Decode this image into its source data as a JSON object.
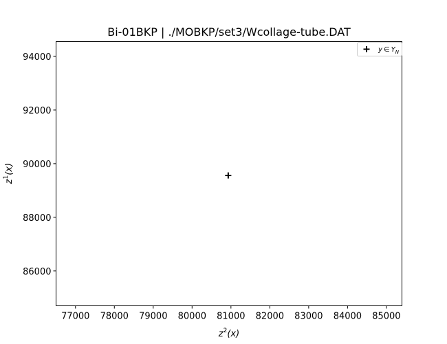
{
  "chart_data": {
    "type": "scatter",
    "title": "Bi-01BKP | ./MOBKP/set3/Wcollage-tube.DAT",
    "xlabel": {
      "base": "z",
      "sup": "2",
      "arg": "(x)"
    },
    "ylabel": {
      "base": "z",
      "sup": "1",
      "arg": "(x)"
    },
    "xlim": [
      76500,
      85400
    ],
    "ylim": [
      84700,
      94550
    ],
    "xticks": [
      77000,
      78000,
      79000,
      80000,
      81000,
      82000,
      83000,
      84000,
      85000
    ],
    "yticks": [
      86000,
      88000,
      90000,
      92000,
      94000
    ],
    "grid": false,
    "legend": {
      "placement": "top-right",
      "entries": [
        {
          "label_math": {
            "base": "y",
            "op": "∈",
            "set": "Y",
            "sub": "N"
          },
          "marker": "plus",
          "color": "#000000"
        }
      ]
    },
    "series": [
      {
        "marker": "plus",
        "color": "#000000",
        "points": [
          {
            "x": 80930,
            "y": 89560
          }
        ]
      }
    ]
  }
}
